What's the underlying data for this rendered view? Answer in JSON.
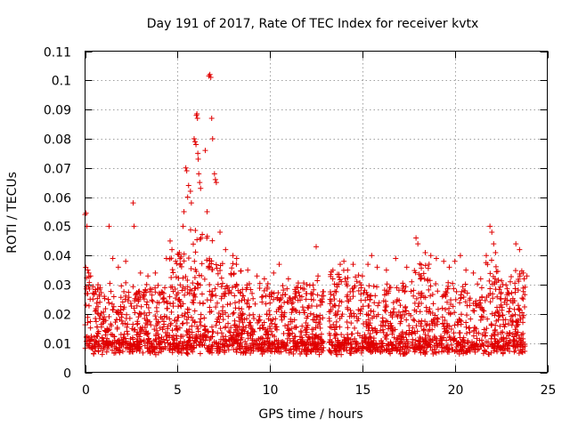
{
  "chart_data": {
    "type": "scatter",
    "title": "Day 191 of 2017, Rate Of TEC Index for receiver kvtx",
    "xlabel": "GPS time / hours",
    "ylabel": "ROTI / TECUs",
    "xlim": [
      0,
      25
    ],
    "ylim": [
      0,
      0.11
    ],
    "xticks": [
      "0",
      "5",
      "10",
      "15",
      "20",
      "25"
    ],
    "yticks": [
      "0",
      "0.01",
      "0.02",
      "0.03",
      "0.04",
      "0.05",
      "0.06",
      "0.07",
      "0.08",
      "0.09",
      "0.1",
      "0.11"
    ],
    "grid": true,
    "marker": "plus",
    "color": "#e00000",
    "data_gap_hours": [
      12.9,
      13.2
    ],
    "series": [
      {
        "name": "ROTI",
        "points": [
          [
            0.0,
            0.054
          ],
          [
            0.05,
            0.0545
          ],
          [
            0.1,
            0.05
          ],
          [
            0.15,
            0.035
          ],
          [
            0.2,
            0.034
          ],
          [
            0.3,
            0.033
          ],
          [
            0.5,
            0.027
          ],
          [
            0.8,
            0.024
          ],
          [
            1.3,
            0.05
          ],
          [
            1.5,
            0.039
          ],
          [
            1.8,
            0.036
          ],
          [
            2.2,
            0.038
          ],
          [
            2.6,
            0.058
          ],
          [
            2.65,
            0.05
          ],
          [
            3.0,
            0.034
          ],
          [
            3.4,
            0.033
          ],
          [
            3.8,
            0.034
          ],
          [
            4.4,
            0.039
          ],
          [
            4.6,
            0.045
          ],
          [
            4.7,
            0.042
          ],
          [
            4.9,
            0.038
          ],
          [
            5.1,
            0.041
          ],
          [
            5.3,
            0.05
          ],
          [
            5.35,
            0.055
          ],
          [
            5.45,
            0.07
          ],
          [
            5.5,
            0.069
          ],
          [
            5.55,
            0.06
          ],
          [
            5.6,
            0.064
          ],
          [
            5.7,
            0.062
          ],
          [
            5.75,
            0.058
          ],
          [
            5.9,
            0.08
          ],
          [
            5.95,
            0.079
          ],
          [
            6.0,
            0.078
          ],
          [
            6.02,
            0.088
          ],
          [
            6.05,
            0.0885
          ],
          [
            6.08,
            0.087
          ],
          [
            6.1,
            0.075
          ],
          [
            6.12,
            0.073
          ],
          [
            6.15,
            0.068
          ],
          [
            6.2,
            0.065
          ],
          [
            6.25,
            0.063
          ],
          [
            6.5,
            0.076
          ],
          [
            6.6,
            0.055
          ],
          [
            6.7,
            0.1015
          ],
          [
            6.75,
            0.102
          ],
          [
            6.8,
            0.101
          ],
          [
            6.85,
            0.087
          ],
          [
            6.9,
            0.08
          ],
          [
            7.0,
            0.068
          ],
          [
            7.05,
            0.066
          ],
          [
            7.1,
            0.065
          ],
          [
            7.3,
            0.048
          ],
          [
            7.6,
            0.042
          ],
          [
            8.0,
            0.04
          ],
          [
            8.2,
            0.039
          ],
          [
            8.8,
            0.035
          ],
          [
            9.3,
            0.033
          ],
          [
            9.7,
            0.032
          ],
          [
            10.2,
            0.034
          ],
          [
            10.5,
            0.037
          ],
          [
            11.0,
            0.032
          ],
          [
            11.5,
            0.029
          ],
          [
            12.0,
            0.03
          ],
          [
            12.5,
            0.043
          ],
          [
            12.6,
            0.033
          ],
          [
            13.4,
            0.032
          ],
          [
            13.8,
            0.037
          ],
          [
            14.0,
            0.038
          ],
          [
            14.2,
            0.035
          ],
          [
            14.5,
            0.037
          ],
          [
            15.0,
            0.033
          ],
          [
            15.3,
            0.037
          ],
          [
            15.5,
            0.04
          ],
          [
            15.8,
            0.036
          ],
          [
            16.3,
            0.035
          ],
          [
            16.8,
            0.039
          ],
          [
            17.4,
            0.036
          ],
          [
            17.9,
            0.046
          ],
          [
            18.0,
            0.044
          ],
          [
            18.4,
            0.041
          ],
          [
            18.7,
            0.04
          ],
          [
            19.0,
            0.039
          ],
          [
            19.4,
            0.038
          ],
          [
            19.7,
            0.036
          ],
          [
            20.0,
            0.038
          ],
          [
            20.3,
            0.04
          ],
          [
            20.6,
            0.035
          ],
          [
            21.0,
            0.034
          ],
          [
            21.4,
            0.032
          ],
          [
            21.7,
            0.04
          ],
          [
            21.9,
            0.05
          ],
          [
            22.0,
            0.048
          ],
          [
            22.1,
            0.044
          ],
          [
            22.2,
            0.041
          ],
          [
            22.6,
            0.03
          ],
          [
            23.0,
            0.031
          ],
          [
            23.3,
            0.044
          ],
          [
            23.5,
            0.042
          ],
          [
            23.7,
            0.034
          ],
          [
            23.9,
            0.033
          ]
        ]
      }
    ]
  }
}
